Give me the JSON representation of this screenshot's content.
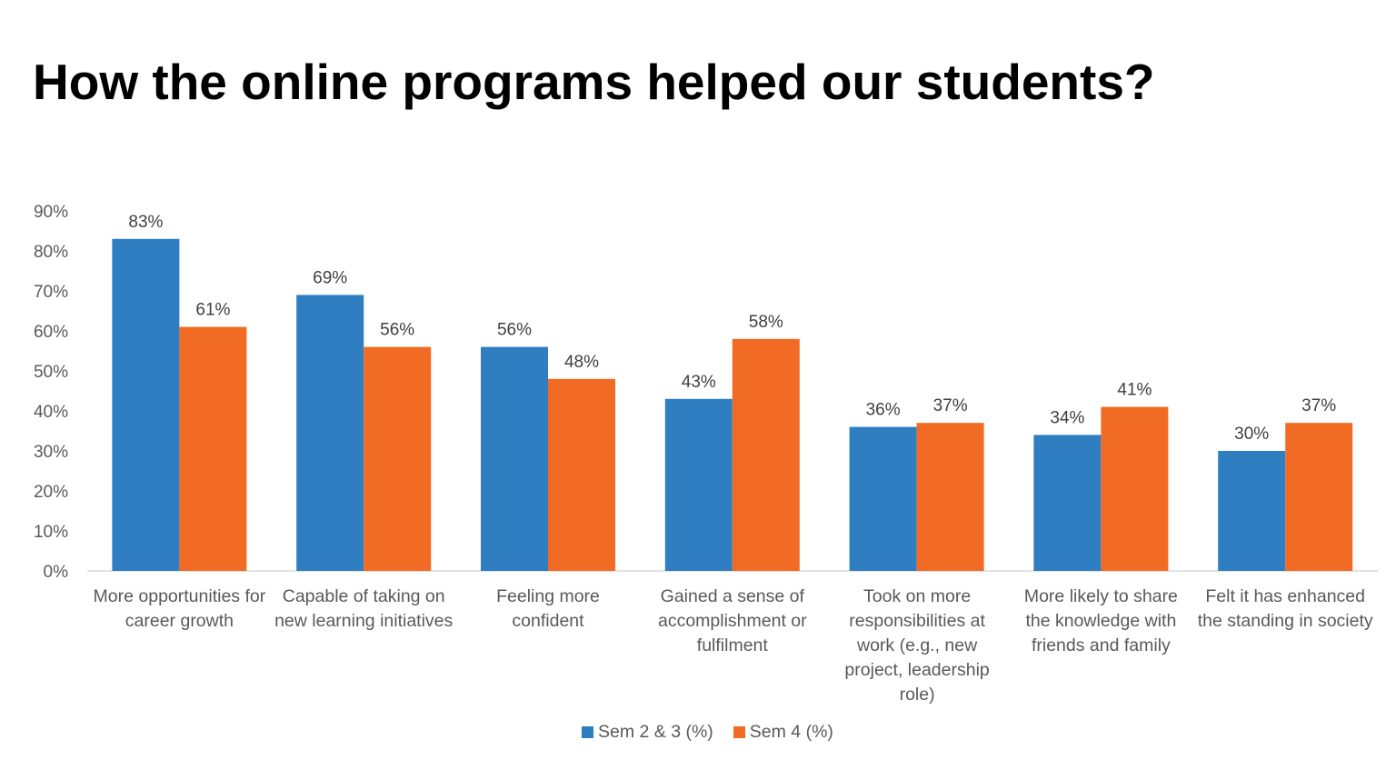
{
  "title": "How the online programs helped our students?",
  "chart_data": {
    "type": "bar",
    "title": "",
    "xlabel": "",
    "ylabel": "",
    "ylim": [
      0,
      90
    ],
    "yticks": [
      "0%",
      "10%",
      "20%",
      "30%",
      "40%",
      "50%",
      "60%",
      "70%",
      "80%",
      "90%"
    ],
    "grid": false,
    "legend_position": "bottom",
    "categories": [
      "More opportunities for career growth",
      "Capable of taking on new learning initiatives",
      "Feeling more confident",
      "Gained a sense of accomplishment or fulfilment",
      "Took on more responsibilities at work (e.g., new project, leadership role)",
      "More likely to share the knowledge with friends and family",
      "Felt it has enhanced the standing in society"
    ],
    "series": [
      {
        "name": "Sem 2 & 3 (%)",
        "color": "#2E7EC1",
        "values": [
          83,
          69,
          56,
          43,
          36,
          34,
          30
        ],
        "labels": [
          "83%",
          "69%",
          "56%",
          "43%",
          "36%",
          "34%",
          "30%"
        ]
      },
      {
        "name": "Sem 4 (%)",
        "color": "#F26B24",
        "values": [
          61,
          56,
          48,
          58,
          37,
          41,
          37
        ],
        "labels": [
          "61%",
          "56%",
          "48%",
          "58%",
          "37%",
          "41%",
          "37%"
        ]
      }
    ]
  }
}
